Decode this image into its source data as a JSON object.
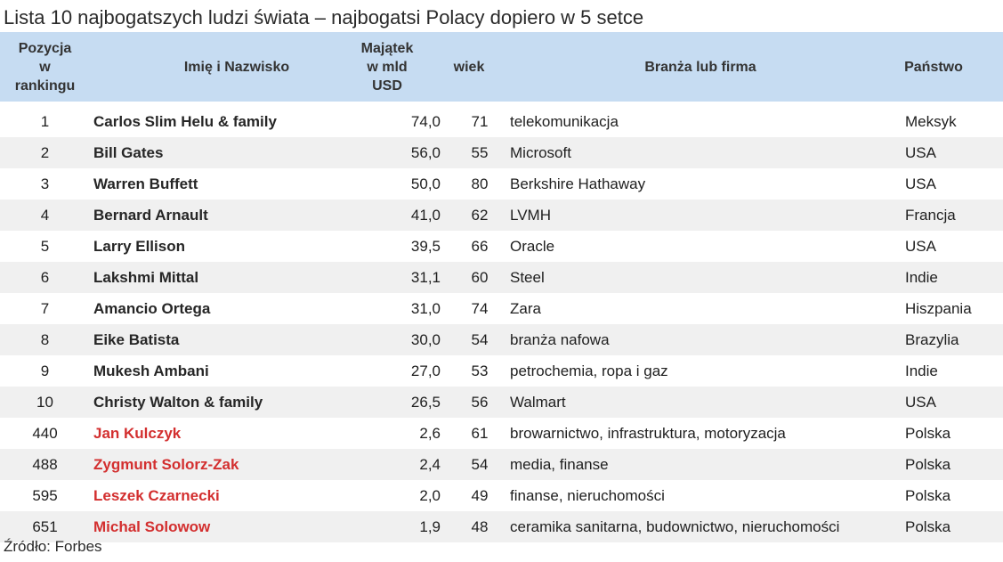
{
  "title": "Lista 10 najbogatszych ludzi świata – najbogatsi Polacy dopiero w 5 setce",
  "headers": {
    "position": [
      "Pozycja",
      "w",
      "rankingu"
    ],
    "name": "Imię i Nazwisko",
    "wealth": [
      "Majątek",
      "w mld",
      "USD"
    ],
    "age": "wiek",
    "industry": "Branża lub firma",
    "country": "Państwo"
  },
  "rows": [
    {
      "pos": "1",
      "name": "Carlos Slim Helu & family",
      "wealth": "74,0",
      "age": "71",
      "industry": "telekomunikacja",
      "country": "Meksyk",
      "polish": false
    },
    {
      "pos": "2",
      "name": "Bill Gates",
      "wealth": "56,0",
      "age": "55",
      "industry": "Microsoft",
      "country": "USA",
      "polish": false
    },
    {
      "pos": "3",
      "name": "Warren Buffett",
      "wealth": "50,0",
      "age": "80",
      "industry": "Berkshire Hathaway",
      "country": "USA",
      "polish": false
    },
    {
      "pos": "4",
      "name": "Bernard Arnault",
      "wealth": "41,0",
      "age": "62",
      "industry": "LVMH",
      "country": "Francja",
      "polish": false
    },
    {
      "pos": "5",
      "name": "Larry Ellison",
      "wealth": "39,5",
      "age": "66",
      "industry": "Oracle",
      "country": "USA",
      "polish": false
    },
    {
      "pos": "6",
      "name": "Lakshmi Mittal",
      "wealth": "31,1",
      "age": "60",
      "industry": "Steel",
      "country": "Indie",
      "polish": false
    },
    {
      "pos": "7",
      "name": "Amancio Ortega",
      "wealth": "31,0",
      "age": "74",
      "industry": "Zara",
      "country": "Hiszpania",
      "polish": false
    },
    {
      "pos": "8",
      "name": "Eike Batista",
      "wealth": "30,0",
      "age": "54",
      "industry": "branża nafowa",
      "country": "Brazylia",
      "polish": false
    },
    {
      "pos": "9",
      "name": "Mukesh Ambani",
      "wealth": "27,0",
      "age": "53",
      "industry": "petrochemia, ropa i gaz",
      "country": "Indie",
      "polish": false
    },
    {
      "pos": "10",
      "name": "Christy Walton & family",
      "wealth": "26,5",
      "age": "56",
      "industry": "Walmart",
      "country": "USA",
      "polish": false
    },
    {
      "pos": "440",
      "name": "Jan Kulczyk",
      "wealth": "2,6",
      "age": "61",
      "industry": "browarnictwo, infrastruktura, motoryzacja",
      "country": "Polska",
      "polish": true
    },
    {
      "pos": "488",
      "name": "Zygmunt Solorz-Zak",
      "wealth": "2,4",
      "age": "54",
      "industry": "media, finanse",
      "country": "Polska",
      "polish": true
    },
    {
      "pos": "595",
      "name": "Leszek Czarnecki",
      "wealth": "2,0",
      "age": "49",
      "industry": "finanse, nieruchomości",
      "country": "Polska",
      "polish": true
    },
    {
      "pos": "651",
      "name": "Michal Solowow",
      "wealth": "1,9",
      "age": "48",
      "industry": "ceramika sanitarna, budownictwo, nieruchomości",
      "country": "Polska",
      "polish": true
    }
  ],
  "source": "Źródło: Forbes",
  "colors": {
    "header_bg": "#c6dcf2",
    "alt_row_bg": "#f0f0f0",
    "polish_name": "#d32f2f"
  }
}
